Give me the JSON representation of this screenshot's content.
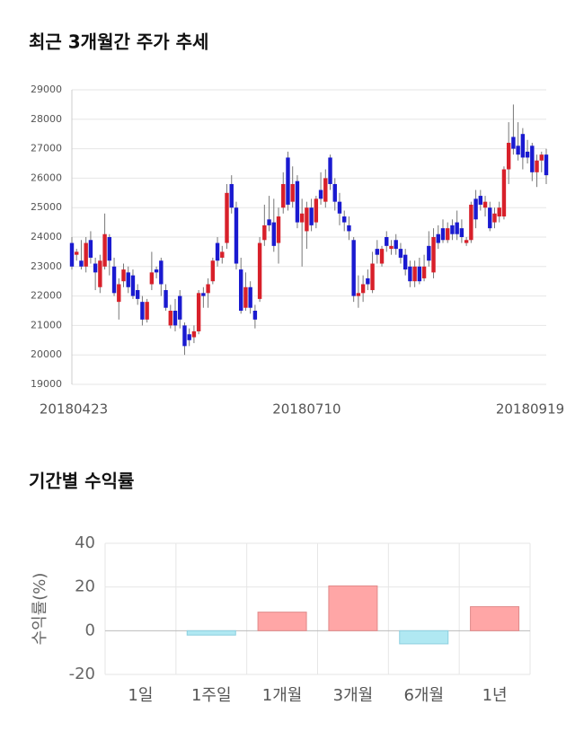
{
  "chart_data": [
    {
      "type": "candlestick",
      "title": "최근 3개월간 주가 추세",
      "categories": [
        "20180423",
        null,
        null,
        null,
        null,
        null,
        null,
        null,
        null,
        null,
        null,
        null,
        null,
        null,
        null,
        null,
        null,
        null,
        null,
        null,
        null,
        null,
        null,
        null,
        null,
        null,
        null,
        null,
        null,
        null,
        null,
        null,
        null,
        null,
        null,
        null,
        null,
        null,
        null,
        null,
        null,
        null,
        null,
        null,
        null,
        null,
        null,
        null,
        null,
        null,
        "20180710",
        null,
        null,
        null,
        null,
        null,
        null,
        null,
        null,
        null,
        null,
        null,
        null,
        null,
        null,
        null,
        null,
        null,
        null,
        null,
        null,
        null,
        null,
        null,
        null,
        null,
        null,
        null,
        null,
        null,
        null,
        null,
        null,
        null,
        null,
        null,
        null,
        null,
        null,
        null,
        null,
        null,
        null,
        null,
        null,
        null,
        null,
        null,
        null,
        null,
        null,
        "20180919"
      ],
      "open": [
        23800,
        23400,
        23200,
        23000,
        23900,
        23100,
        22300,
        23000,
        24000,
        23000,
        21800,
        22500,
        22800,
        22700,
        22200,
        21800,
        21200,
        22400,
        22900,
        23200,
        22200,
        21000,
        21500,
        22000,
        21000,
        20700,
        20600,
        20800,
        22100,
        22100,
        22500,
        23800,
        23300,
        23800,
        25800,
        25000,
        22900,
        21600,
        22300,
        21500,
        21900,
        23900,
        24600,
        24500,
        23800,
        25000,
        26700,
        25200,
        25900,
        24500,
        24200,
        25000,
        24500,
        25600,
        25200,
        26700,
        25800,
        25200,
        24700,
        24400,
        23900,
        22000,
        22100,
        22600,
        22200,
        23600,
        23100,
        24000,
        23600,
        23900,
        23600,
        23400,
        23000,
        22500,
        23000,
        22600,
        23700,
        22800,
        24100,
        24300,
        23900,
        24400,
        24500,
        24300,
        23800,
        23900,
        25300,
        25400,
        25000,
        25000,
        24500,
        24700,
        24700,
        26300,
        27400,
        27100,
        27500,
        26900,
        27100,
        26200,
        26600,
        26800
      ],
      "high": [
        24000,
        23600,
        23900,
        24000,
        24200,
        23300,
        23400,
        24800,
        24100,
        23300,
        22600,
        23100,
        23000,
        22900,
        22400,
        22000,
        21900,
        23500,
        23000,
        23300,
        22400,
        21700,
        21900,
        22200,
        21100,
        20900,
        21000,
        22200,
        22300,
        22600,
        23300,
        24000,
        23700,
        25800,
        26100,
        25200,
        23300,
        22800,
        22500,
        21700,
        24000,
        25100,
        25400,
        25300,
        25000,
        26200,
        26900,
        26400,
        26100,
        25300,
        25200,
        25300,
        25400,
        26200,
        26300,
        26800,
        26000,
        25500,
        24900,
        24700,
        24000,
        22700,
        22700,
        22900,
        23500,
        23900,
        23700,
        24200,
        23900,
        24100,
        23800,
        23600,
        23200,
        23200,
        23300,
        23400,
        24200,
        24300,
        24400,
        24600,
        24500,
        24600,
        24900,
        24600,
        24000,
        25200,
        25600,
        25600,
        25400,
        25200,
        25000,
        25200,
        26400,
        27900,
        28500,
        27900,
        27700,
        27300,
        27200,
        26800,
        26900,
        27000
      ],
      "low": [
        22900,
        23200,
        22900,
        22800,
        23100,
        22200,
        22100,
        22900,
        22700,
        22000,
        21200,
        22300,
        22100,
        21900,
        21700,
        21000,
        21100,
        22200,
        22600,
        22000,
        21500,
        20900,
        20800,
        20900,
        20000,
        20300,
        20400,
        20700,
        21600,
        21600,
        22400,
        23000,
        23100,
        23600,
        24800,
        22900,
        21400,
        21500,
        21400,
        20900,
        21800,
        23700,
        24200,
        23500,
        23100,
        24800,
        24900,
        25000,
        24300,
        23000,
        23600,
        24200,
        24300,
        25100,
        25000,
        25600,
        24900,
        24400,
        24200,
        23900,
        21800,
        21600,
        21800,
        22200,
        22100,
        23100,
        23000,
        23500,
        23400,
        23400,
        23100,
        22700,
        22300,
        22300,
        22400,
        22500,
        23000,
        22600,
        23600,
        23800,
        23800,
        23900,
        23900,
        23800,
        23700,
        23800,
        24300,
        24900,
        24700,
        24200,
        24300,
        24500,
        24600,
        25800,
        26800,
        26600,
        26300,
        26500,
        25900,
        25700,
        26200,
        25800
      ],
      "close": [
        23000,
        23500,
        23000,
        23800,
        23300,
        22800,
        23200,
        24100,
        23200,
        22100,
        22400,
        22900,
        22300,
        22000,
        21900,
        21200,
        21800,
        22800,
        22800,
        22400,
        21600,
        21500,
        21000,
        21200,
        20300,
        20500,
        20800,
        22100,
        22000,
        22400,
        23200,
        23200,
        23500,
        25500,
        25000,
        23100,
        21500,
        22300,
        21600,
        21200,
        23800,
        24400,
        24400,
        23700,
        24700,
        25800,
        25100,
        25800,
        24500,
        24800,
        25000,
        24400,
        25300,
        25300,
        26000,
        25800,
        25200,
        24800,
        24500,
        24200,
        22000,
        22100,
        22400,
        22400,
        23100,
        23400,
        23600,
        23700,
        23700,
        23600,
        23300,
        22900,
        22500,
        23000,
        22500,
        23000,
        23200,
        24000,
        23800,
        23900,
        24300,
        24100,
        24100,
        24000,
        23900,
        25100,
        24600,
        25100,
        25200,
        24300,
        24800,
        25000,
        26300,
        27200,
        27000,
        26800,
        26700,
        26700,
        26200,
        26600,
        26800,
        26100
      ],
      "up_color": "#d8202a",
      "down_color": "#1a1ad0",
      "ylim": [
        19000,
        29000
      ],
      "yticks": [
        19000,
        20000,
        21000,
        22000,
        23000,
        24000,
        25000,
        26000,
        27000,
        28000,
        29000
      ],
      "grid": true
    },
    {
      "type": "bar",
      "title": "기간별 수익률",
      "ylabel": "수익률(%)",
      "categories": [
        "1일",
        "1주일",
        "1개월",
        "3개월",
        "6개월",
        "1년"
      ],
      "values": [
        0,
        -2,
        8.5,
        20.5,
        -6,
        11
      ],
      "positive_color": "#ffa6a6",
      "negative_color": "#b0e8f2",
      "ylim": [
        -20,
        40
      ],
      "yticks": [
        -20,
        0,
        20,
        40
      ],
      "grid": true
    }
  ]
}
